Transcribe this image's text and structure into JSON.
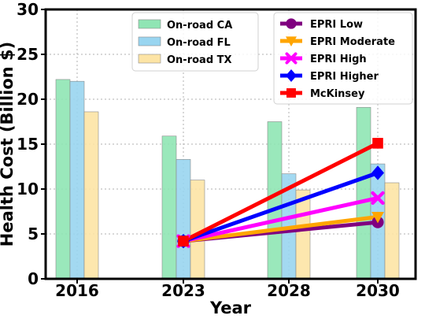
{
  "chart_data": {
    "type": "bar",
    "xlabel": "Year",
    "ylabel": "Health Cost (Billion $)",
    "ylim": [
      0,
      30
    ],
    "yticks": [
      0,
      5,
      10,
      15,
      20,
      25,
      30
    ],
    "categories": [
      "2016",
      "2023",
      "2028",
      "2030"
    ],
    "grid": true,
    "bar_series": [
      {
        "name": "On-road CA",
        "color": "#8fe5b4",
        "values": [
          22.2,
          15.9,
          17.5,
          19.1
        ]
      },
      {
        "name": "On-road FL",
        "color": "#99d5f0",
        "values": [
          22.0,
          13.3,
          11.7,
          12.8
        ]
      },
      {
        "name": "On-road TX",
        "color": "#fde4a5",
        "values": [
          18.6,
          11.0,
          9.9,
          10.7
        ]
      }
    ],
    "line_series": [
      {
        "name": "EPRI Low",
        "color": "#800080",
        "marker": "circle",
        "x": [
          "2023",
          "2030"
        ],
        "values": [
          4.2,
          6.3
        ]
      },
      {
        "name": "EPRI Moderate",
        "color": "#ffa500",
        "marker": "triangle-down",
        "x": [
          "2023",
          "2030"
        ],
        "values": [
          4.2,
          6.9
        ]
      },
      {
        "name": "EPRI High",
        "color": "#ff00ff",
        "marker": "x",
        "x": [
          "2023",
          "2030"
        ],
        "values": [
          4.2,
          9.0
        ]
      },
      {
        "name": "EPRI Higher",
        "color": "#0000ff",
        "marker": "diamond",
        "x": [
          "2023",
          "2030"
        ],
        "values": [
          4.2,
          11.8
        ]
      },
      {
        "name": "McKinsey",
        "color": "#ff0000",
        "marker": "square",
        "x": [
          "2023",
          "2030"
        ],
        "values": [
          4.2,
          15.1
        ]
      }
    ],
    "legend_placement": [
      "upper-center",
      "upper-right"
    ]
  }
}
